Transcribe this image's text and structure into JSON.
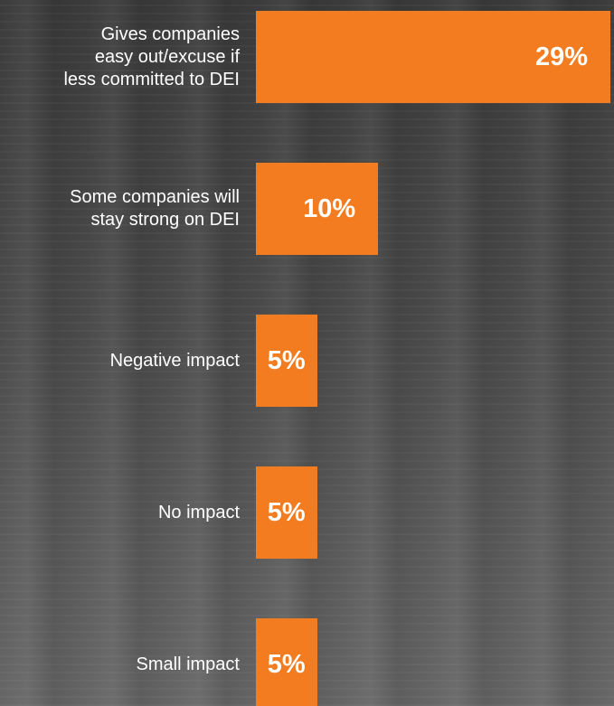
{
  "chart_data": {
    "type": "bar",
    "orientation": "horizontal",
    "categories": [
      "Gives companies\neasy out/excuse if\nless committed to DEI",
      "Some companies will\nstay strong on DEI",
      "Negative impact",
      "No impact",
      "Small impact"
    ],
    "values": [
      29,
      10,
      5,
      5,
      5
    ],
    "value_labels": [
      "29%",
      "10%",
      "5%",
      "5%",
      "5%"
    ],
    "color": "#f47c20"
  }
}
